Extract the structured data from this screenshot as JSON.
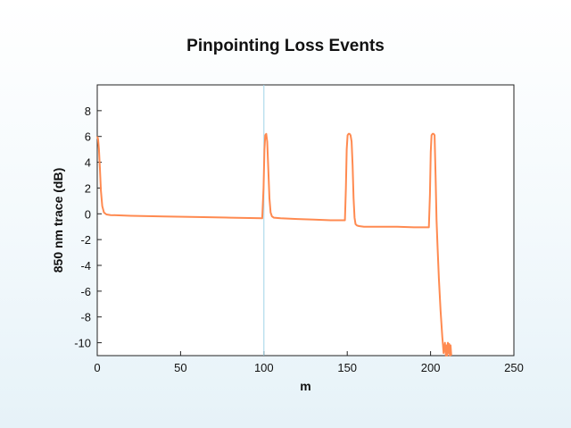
{
  "chart_data": {
    "type": "line",
    "title": "Pinpointing Loss Events",
    "xlabel": "m",
    "ylabel": "850 nm trace (dB)",
    "xlim": [
      0,
      250
    ],
    "ylim": [
      -11,
      10
    ],
    "xticks": [
      0,
      50,
      100,
      150,
      200,
      250
    ],
    "yticks": [
      -10,
      -8,
      -6,
      -4,
      -2,
      0,
      2,
      4,
      6,
      8
    ],
    "grid": false,
    "legend": "none",
    "marker_line_x": 100,
    "series": [
      {
        "color": "#ff8a50",
        "x": [
          0,
          0.5,
          1.0,
          1.6,
          2.2,
          3.0,
          4.0,
          5.5,
          8,
          20,
          40,
          60,
          80,
          99.0,
          99.8,
          100.3,
          100.8,
          101.4,
          102.0,
          102.6,
          103.3,
          104.0,
          104.8,
          106,
          110,
          120,
          130,
          140,
          148.6,
          149.2,
          149.7,
          150.2,
          150.8,
          151.4,
          152.0,
          152.6,
          153.2,
          153.8,
          154.4,
          155.0,
          155.8,
          157,
          160,
          170,
          180,
          190,
          199.0,
          199.6,
          200.1,
          200.6,
          201.2,
          201.8,
          202.4,
          203.0,
          203.6,
          204.2,
          205.0,
          206.0,
          207.0,
          207.8,
          208.6,
          209.2,
          209.6,
          210.0,
          210.4,
          210.8,
          211.2,
          211.6,
          212.0,
          212.4
        ],
        "values": [
          6.0,
          5.8,
          5.0,
          3.5,
          1.8,
          0.6,
          0.1,
          -0.05,
          -0.1,
          -0.15,
          -0.2,
          -0.25,
          -0.3,
          -0.35,
          2.0,
          5.0,
          6.1,
          6.2,
          5.6,
          3.5,
          1.2,
          0.1,
          -0.2,
          -0.3,
          -0.35,
          -0.4,
          -0.45,
          -0.5,
          -0.5,
          2.0,
          5.0,
          6.1,
          6.2,
          6.2,
          6.1,
          5.6,
          3.8,
          1.2,
          -0.3,
          -0.8,
          -0.9,
          -0.95,
          -1.0,
          -1.0,
          -1.0,
          -1.05,
          -1.05,
          1.5,
          4.8,
          6.1,
          6.2,
          6.2,
          6.1,
          3.0,
          -0.5,
          -2.5,
          -5.0,
          -7.5,
          -9.5,
          -10.8,
          -10.0,
          -11.0,
          -10.2,
          -11.0,
          -10.0,
          -10.8,
          -10.1,
          -11.0,
          -10.2,
          -11.0
        ]
      }
    ]
  }
}
